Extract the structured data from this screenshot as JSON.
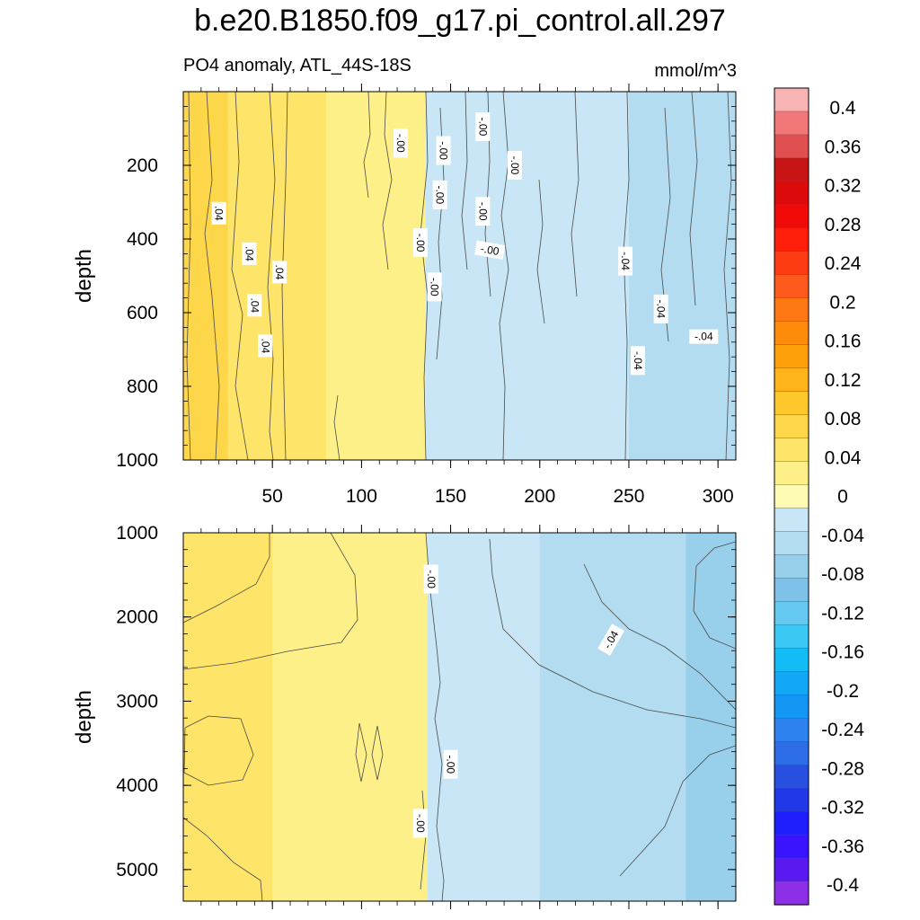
{
  "chart_data": {
    "type": "heatmap",
    "title": "b.e20.B1850.f09_g17.pi_control.all.297",
    "subtitle": "PO4 anomaly, ATL_44S-18S",
    "units": "mmol/m^3",
    "x_ticks": [
      "50",
      "100",
      "150",
      "200",
      "250",
      "300"
    ],
    "x_range": [
      0,
      310
    ],
    "colorbar": {
      "labels": [
        "0.4",
        "0.36",
        "0.32",
        "0.28",
        "0.24",
        "0.2",
        "0.16",
        "0.12",
        "0.08",
        "0.04",
        "0",
        "-0.04",
        "-0.08",
        "-0.12",
        "-0.16",
        "-0.2",
        "-0.24",
        "-0.28",
        "-0.32",
        "-0.36",
        "-0.4"
      ],
      "levels_min": -0.42,
      "levels_max": 0.42,
      "colors": [
        "#8c2ee6",
        "#5a19f0",
        "#3a14ff",
        "#1e1eff",
        "#2038e8",
        "#2850e0",
        "#2d6ee8",
        "#2d82f0",
        "#1496f5",
        "#12a8f5",
        "#14bcf5",
        "#3cc8f5",
        "#64c8f0",
        "#7ec2ea",
        "#98d0ec",
        "#b4dcf1",
        "#c8e6f5",
        "#fefcb4",
        "#fef088",
        "#fee468",
        "#fed64a",
        "#fec82d",
        "#feb41a",
        "#fea00a",
        "#fe8c0a",
        "#fe7814",
        "#fe5a1e",
        "#fe3c14",
        "#fe1e0a",
        "#f00a0a",
        "#dc0a0a",
        "#c81414",
        "#e05050",
        "#f07878",
        "#f8b4b4"
      ]
    },
    "panels": [
      {
        "name": "upper",
        "ylabel": "depth",
        "y_ticks": [
          "200",
          "400",
          "600",
          "800",
          "1000"
        ],
        "y_range": [
          0,
          1000
        ],
        "fill_regions": [
          {
            "x_from": 0,
            "x_to": 25,
            "value": 0.06
          },
          {
            "x_from": 25,
            "x_to": 80,
            "value": 0.045
          },
          {
            "x_from": 80,
            "x_to": 136,
            "value": 0.015
          },
          {
            "x_from": 136,
            "x_to": 178,
            "value": -0.015
          },
          {
            "x_from": 178,
            "x_to": 250,
            "value": -0.03
          },
          {
            "x_from": 250,
            "x_to": 310,
            "value": -0.045
          }
        ],
        "contour_labels": [
          {
            "text": ".04",
            "x": 20,
            "y": 330,
            "angle": 90
          },
          {
            "text": ".04",
            "x": 37,
            "y": 440,
            "angle": 90
          },
          {
            "text": ".04",
            "x": 54,
            "y": 490,
            "angle": 90
          },
          {
            "text": ".04",
            "x": 40,
            "y": 580,
            "angle": 90
          },
          {
            "text": ".04",
            "x": 46,
            "y": 690,
            "angle": 90
          },
          {
            "text": "-.00",
            "x": 122,
            "y": 140,
            "angle": 90
          },
          {
            "text": "-.00",
            "x": 146,
            "y": 160,
            "angle": 90
          },
          {
            "text": "-.00",
            "x": 168,
            "y": 95,
            "angle": 90
          },
          {
            "text": "-.00",
            "x": 186,
            "y": 200,
            "angle": 90
          },
          {
            "text": "-.00",
            "x": 144,
            "y": 280,
            "angle": 90
          },
          {
            "text": "-.00",
            "x": 168,
            "y": 325,
            "angle": 90
          },
          {
            "text": "-.00",
            "x": 133,
            "y": 410,
            "angle": 90
          },
          {
            "text": "-.00",
            "x": 141,
            "y": 530,
            "angle": 90
          },
          {
            "text": "-.00",
            "x": 172,
            "y": 430,
            "angle": 10
          },
          {
            "text": "-.04",
            "x": 248,
            "y": 460,
            "angle": 90
          },
          {
            "text": "-.04",
            "x": 268,
            "y": 590,
            "angle": 90
          },
          {
            "text": "-.04",
            "x": 255,
            "y": 730,
            "angle": 90
          },
          {
            "text": "-.04",
            "x": 292,
            "y": 665,
            "angle": 0
          }
        ]
      },
      {
        "name": "lower",
        "ylabel": "depth",
        "y_ticks": [
          "1000",
          "2000",
          "3000",
          "4000",
          "5000"
        ],
        "y_range": [
          1000,
          5375
        ],
        "fill_regions": [
          {
            "x_from": 0,
            "x_to": 50,
            "value": 0.045
          },
          {
            "x_from": 50,
            "x_to": 100,
            "value": 0.025
          },
          {
            "x_from": 100,
            "x_to": 137,
            "value": 0.012
          },
          {
            "x_from": 137,
            "x_to": 200,
            "value": -0.015
          },
          {
            "x_from": 200,
            "x_to": 282,
            "value": -0.045
          },
          {
            "x_from": 282,
            "x_to": 310,
            "value": -0.065
          }
        ],
        "contour_labels": [
          {
            "text": "-.00",
            "x": 139,
            "y": 1550,
            "angle": 90
          },
          {
            "text": "-.04",
            "x": 240,
            "y": 2270,
            "angle": -60
          },
          {
            "text": "-.00",
            "x": 150,
            "y": 3750,
            "angle": 90
          },
          {
            "text": "-.00",
            "x": 133,
            "y": 4450,
            "angle": 90
          }
        ]
      }
    ]
  }
}
